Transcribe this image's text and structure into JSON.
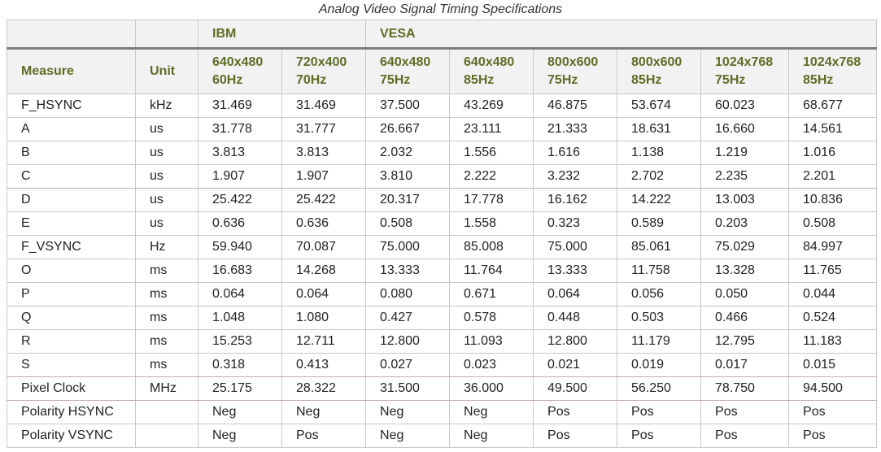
{
  "caption": "Analog Video Signal Timing Specifications",
  "table": {
    "groups": [
      "IBM",
      "VESA"
    ],
    "head_measure": "Measure",
    "head_unit": "Unit",
    "columns": [
      {
        "res": "640x480",
        "rate": "60Hz"
      },
      {
        "res": "720x400",
        "rate": "70Hz"
      },
      {
        "res": "640x480",
        "rate": "75Hz"
      },
      {
        "res": "640x480",
        "rate": "85Hz"
      },
      {
        "res": "800x600",
        "rate": "75Hz"
      },
      {
        "res": "800x600",
        "rate": "85Hz"
      },
      {
        "res": "1024x768",
        "rate": "75Hz"
      },
      {
        "res": "1024x768",
        "rate": "85Hz"
      }
    ],
    "rows": [
      {
        "measure": "F_HSYNC",
        "unit": "kHz",
        "values": [
          "31.469",
          "31.469",
          "37.500",
          "43.269",
          "46.875",
          "53.674",
          "60.023",
          "68.677"
        ]
      },
      {
        "measure": "A",
        "unit": "us",
        "values": [
          "31.778",
          "31.777",
          "26.667",
          "23.111",
          "21.333",
          "18.631",
          "16.660",
          "14.561"
        ]
      },
      {
        "measure": "B",
        "unit": "us",
        "values": [
          "3.813",
          "3.813",
          "2.032",
          "1.556",
          "1.616",
          "1.138",
          "1.219",
          "1.016"
        ]
      },
      {
        "measure": "C",
        "unit": "us",
        "values": [
          "1.907",
          "1.907",
          "3.810",
          "2.222",
          "3.232",
          "2.702",
          "2.235",
          "2.201"
        ]
      },
      {
        "measure": "D",
        "unit": "us",
        "values": [
          "25.422",
          "25.422",
          "20.317",
          "17.778",
          "16.162",
          "14.222",
          "13.003",
          "10.836"
        ]
      },
      {
        "measure": "E",
        "unit": "us",
        "values": [
          "0.636",
          "0.636",
          "0.508",
          "1.558",
          "0.323",
          "0.589",
          "0.203",
          "0.508"
        ]
      },
      {
        "measure": "F_VSYNC",
        "unit": "Hz",
        "values": [
          "59.940",
          "70.087",
          "75.000",
          "85.008",
          "75.000",
          "85.061",
          "75.029",
          "84.997"
        ]
      },
      {
        "measure": "O",
        "unit": "ms",
        "values": [
          "16.683",
          "14.268",
          "13.333",
          "11.764",
          "13.333",
          "11.758",
          "13.328",
          "11.765"
        ]
      },
      {
        "measure": "P",
        "unit": "ms",
        "values": [
          "0.064",
          "0.064",
          "0.080",
          "0.671",
          "0.064",
          "0.056",
          "0.050",
          "0.044"
        ]
      },
      {
        "measure": "Q",
        "unit": "ms",
        "values": [
          "1.048",
          "1.080",
          "0.427",
          "0.578",
          "0.448",
          "0.503",
          "0.466",
          "0.524"
        ]
      },
      {
        "measure": "R",
        "unit": "ms",
        "values": [
          "15.253",
          "12.711",
          "12.800",
          "11.093",
          "12.800",
          "11.179",
          "12.795",
          "11.183"
        ]
      },
      {
        "measure": "S",
        "unit": "ms",
        "values": [
          "0.318",
          "0.413",
          "0.027",
          "0.023",
          "0.021",
          "0.019",
          "0.017",
          "0.015"
        ]
      },
      {
        "measure": "Pixel Clock",
        "unit": "MHz",
        "values": [
          "25.175",
          "28.322",
          "31.500",
          "36.000",
          "49.500",
          "56.250",
          "78.750",
          "94.500"
        ]
      },
      {
        "measure": "Polarity HSYNC",
        "unit": "",
        "values": [
          "Neg",
          "Neg",
          "Neg",
          "Neg",
          "Pos",
          "Pos",
          "Pos",
          "Pos"
        ]
      },
      {
        "measure": "Polarity VSYNC",
        "unit": "",
        "values": [
          "Neg",
          "Pos",
          "Neg",
          "Neg",
          "Pos",
          "Pos",
          "Pos",
          "Pos"
        ]
      }
    ]
  }
}
